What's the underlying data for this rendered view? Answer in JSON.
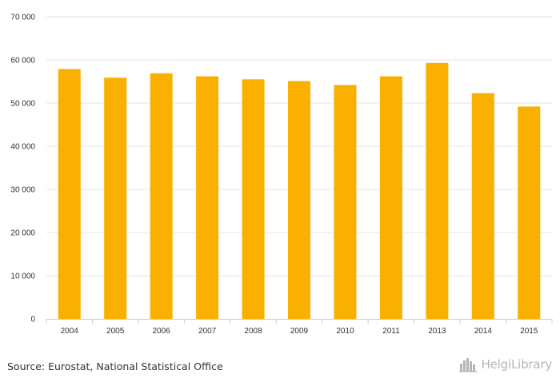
{
  "chart_data": {
    "type": "bar",
    "categories": [
      "2004",
      "2005",
      "2006",
      "2007",
      "2008",
      "2009",
      "2010",
      "2011",
      "2013",
      "2014",
      "2015"
    ],
    "values": [
      57900,
      55900,
      56900,
      56200,
      55500,
      55100,
      54200,
      56200,
      59300,
      52300,
      49200
    ],
    "ylim": [
      0,
      70000
    ],
    "yticks": [
      0,
      10000,
      20000,
      30000,
      40000,
      50000,
      60000,
      70000
    ],
    "ytick_labels": [
      "0",
      "10 000",
      "20 000",
      "30 000",
      "40 000",
      "50 000",
      "60 000",
      "70 000"
    ],
    "title": "",
    "xlabel": "",
    "ylabel": "",
    "grid": true,
    "bar_color": "#f9b000",
    "grid_color": "#e6e6e6",
    "axis_color": "#cccccc"
  },
  "footer": {
    "source": "Source: Eurostat, National Statistical Office",
    "brand": "HelgiLibrary",
    "brand_icon": "skyline-icon"
  }
}
